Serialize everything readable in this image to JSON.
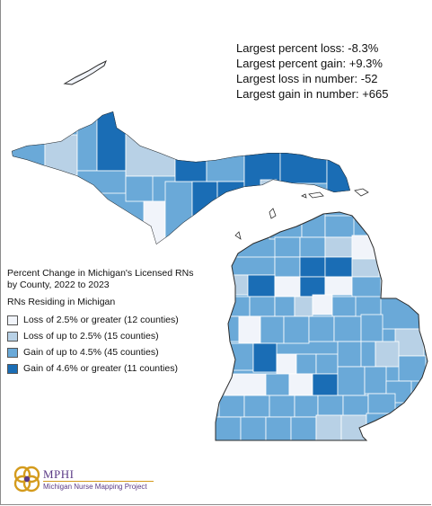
{
  "stats": [
    "Largest percent loss: -8.3%",
    "Largest percent gain: +9.3%",
    "Largest loss in number: -52",
    "Largest gain in number: +665"
  ],
  "legend": {
    "title_line1": "Percent Change in Michigan's Licensed RNs",
    "title_line2": "by County, 2022 to 2023",
    "subtitle": "RNs Residing in Michigan",
    "items": [
      {
        "label": "Loss of 2.5% or greater (12 counties)",
        "color": "#f1f4fa"
      },
      {
        "label": "Loss of up to 2.5% (15 counties)",
        "color": "#b8d1e6"
      },
      {
        "label": "Gain of up to 4.5% (45 counties)",
        "color": "#6aa9d8"
      },
      {
        "label": "Gain of 4.6% or greater (11 counties)",
        "color": "#1a6db5"
      }
    ]
  },
  "logo": {
    "brand": "MPHI",
    "project": "Michigan Nurse Mapping Project"
  },
  "colors": {
    "loss_large": "#f1f4fa",
    "loss_small": "#b8d1e6",
    "gain_small": "#6aa9d8",
    "gain_large": "#1a6db5",
    "county_border": "#ffffff",
    "shoreline": "#2b2b2b",
    "logo_purple": "#5a3a86",
    "logo_gold": "#d49b1d"
  }
}
